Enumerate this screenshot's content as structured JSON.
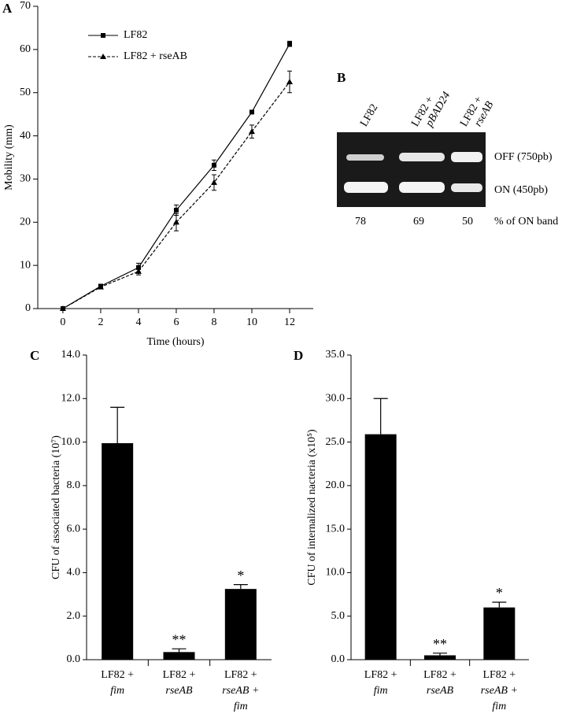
{
  "chart_data": [
    {
      "type": "line",
      "panel": "A",
      "x_label": "Time (hours)",
      "y_label": "Mobility (mm)",
      "x": [
        0,
        2,
        4,
        6,
        8,
        10,
        12
      ],
      "series": [
        {
          "name": "LF82",
          "color": "#000000",
          "marker": "square",
          "dashed": false,
          "values": [
            0,
            5.2,
            9.5,
            22.8,
            33.2,
            45.5,
            61.3
          ],
          "errors": [
            0,
            0.3,
            1.0,
            1.2,
            1.2,
            0.3,
            0.6
          ]
        },
        {
          "name": "LF82 + rseAB",
          "color": "#000000",
          "marker": "triangle",
          "dashed": true,
          "values": [
            0,
            5.0,
            8.6,
            20.0,
            29.2,
            41.0,
            52.5
          ],
          "errors": [
            0,
            0.3,
            0.8,
            2.0,
            1.8,
            1.5,
            2.5
          ]
        }
      ],
      "xlim": [
        -1.33,
        13.25
      ],
      "xticks": [
        0,
        2,
        4,
        6,
        8,
        10,
        12
      ],
      "ylim": [
        0,
        70
      ],
      "yticks": [
        0,
        10,
        20,
        30,
        40,
        50,
        60,
        70
      ],
      "legend": "upper-left"
    },
    {
      "type": "bar",
      "panel": "C",
      "y_label": "CFU of associated bacteria (10⁷)",
      "categories": [
        [
          "LF82 +",
          "fim"
        ],
        [
          "LF82 +",
          "rseAB"
        ],
        [
          "LF82 +",
          "rseAB +",
          "fim"
        ]
      ],
      "values": [
        9.95,
        0.35,
        3.25
      ],
      "errors": [
        1.65,
        0.15,
        0.2
      ],
      "annotations": [
        null,
        "**",
        "*"
      ],
      "color": "#000000",
      "ylim": [
        0,
        14
      ],
      "yticks": [
        {
          "value": 0,
          "label": "0.0"
        },
        {
          "value": 2,
          "label": "2.0"
        },
        {
          "value": 4,
          "label": "4.0"
        },
        {
          "value": 6,
          "label": "6.0"
        },
        {
          "value": 8,
          "label": "8.0"
        },
        {
          "value": 10,
          "label": "10.0"
        },
        {
          "value": 12,
          "label": "12.0"
        },
        {
          "value": 14,
          "label": "14.0"
        }
      ]
    },
    {
      "type": "bar",
      "panel": "D",
      "y_label": "CFU of internalized nacteria (x10⁵)",
      "categories": [
        [
          "LF82 +",
          "fim"
        ],
        [
          "LF82 +",
          "rseAB"
        ],
        [
          "LF82 +",
          "rseAB +",
          "fim"
        ]
      ],
      "values": [
        25.9,
        0.5,
        6.0
      ],
      "errors": [
        4.1,
        0.25,
        0.6
      ],
      "annotations": [
        null,
        "**",
        "*"
      ],
      "color": "#000000",
      "ylim": [
        0,
        35
      ],
      "yticks": [
        {
          "value": 0,
          "label": "0.0"
        },
        {
          "value": 5,
          "label": "5.0"
        },
        {
          "value": 10,
          "label": "10.0"
        },
        {
          "value": 15,
          "label": "15.0"
        },
        {
          "value": 20,
          "label": "20.0"
        },
        {
          "value": 25,
          "label": "25.0"
        },
        {
          "value": 30,
          "label": "30.0"
        },
        {
          "value": 35,
          "label": "35.0"
        }
      ]
    }
  ],
  "gel": {
    "panel": "B",
    "lanes": [
      [
        "LF82"
      ],
      [
        "LF82 +",
        "pBAD24"
      ],
      [
        "LF82 +",
        "rseAB"
      ]
    ],
    "bands": [
      "OFF (750pb)",
      "ON (450pb)"
    ],
    "percentages": [
      78,
      69,
      50
    ],
    "percent_label": "% of ON band"
  }
}
